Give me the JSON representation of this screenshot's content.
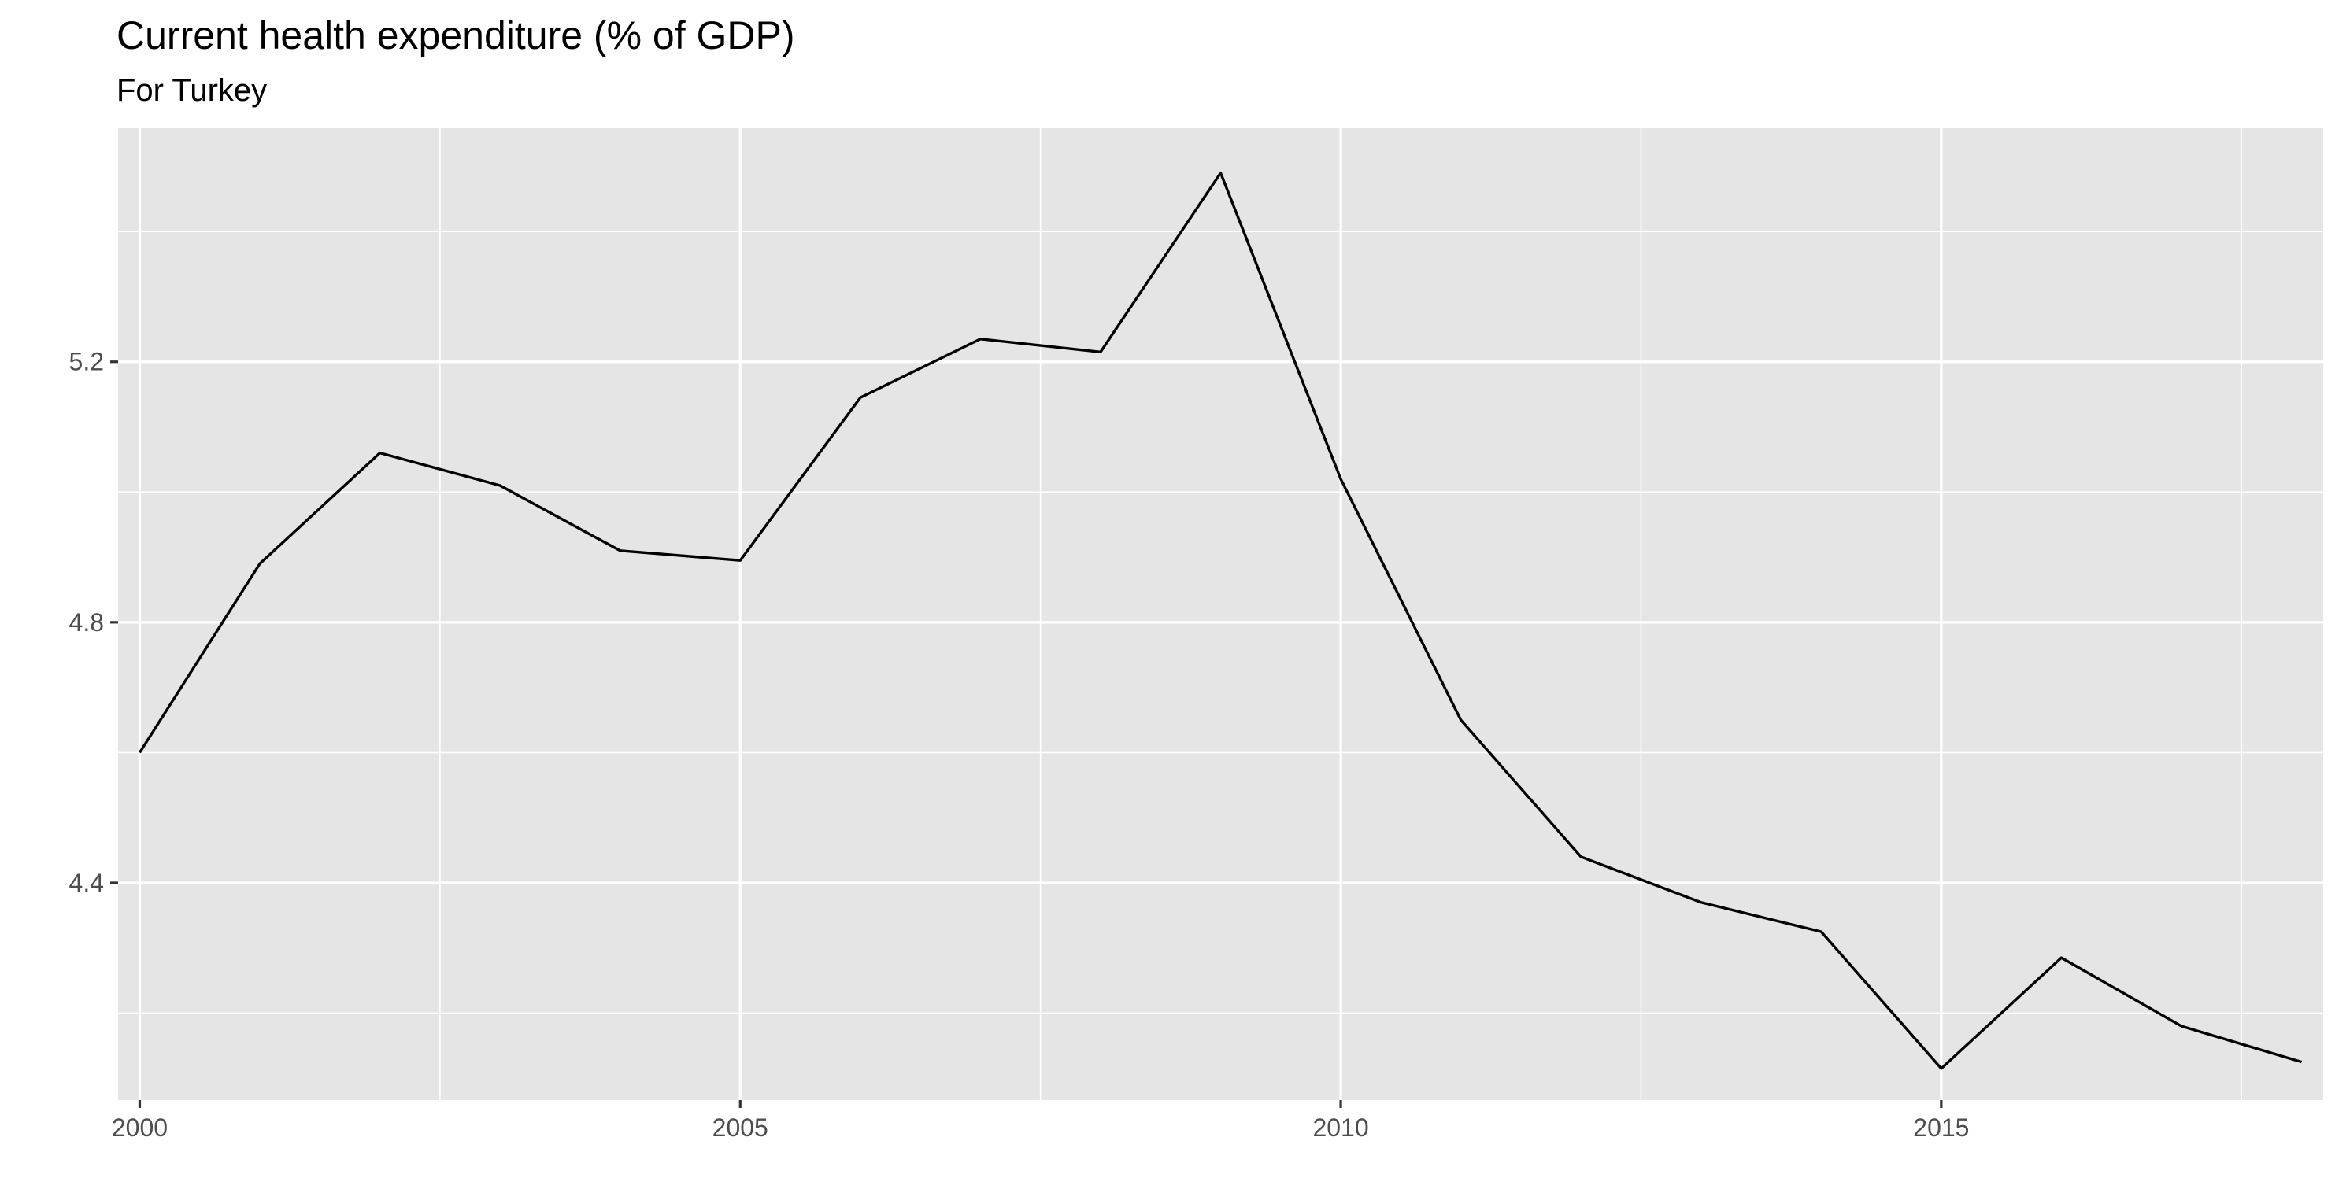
{
  "chart_data": {
    "type": "line",
    "title": "Current health expenditure (% of GDP)",
    "subtitle": "For Turkey",
    "xlabel": "",
    "ylabel": "",
    "x": [
      2000,
      2001,
      2002,
      2003,
      2004,
      2005,
      2006,
      2007,
      2008,
      2009,
      2010,
      2011,
      2012,
      2013,
      2014,
      2015,
      2016,
      2017,
      2018
    ],
    "series": [
      {
        "name": "Turkey",
        "values": [
          4.6,
          4.89,
          5.06,
          5.01,
          4.91,
          4.895,
          5.145,
          5.235,
          5.215,
          5.49,
          5.02,
          4.65,
          4.44,
          4.37,
          4.325,
          4.115,
          4.285,
          4.18,
          4.125
        ],
        "color": "#000000"
      }
    ],
    "xlim": [
      1999.82,
      2018.18
    ],
    "ylim": [
      4.0665,
      5.5585
    ],
    "x_major_ticks": [
      2000,
      2005,
      2010,
      2015
    ],
    "x_minor_ticks": [
      2002.5,
      2007.5,
      2012.5,
      2017.5
    ],
    "x_tick_labels": [
      "2000",
      "2005",
      "2010",
      "2015"
    ],
    "y_major_ticks": [
      4.4,
      4.8,
      5.2
    ],
    "y_minor_ticks": [
      4.2,
      4.6,
      5.0,
      5.4
    ],
    "y_tick_labels": [
      "4.4",
      "4.8",
      "5.2"
    ],
    "grid": true,
    "legend": "none",
    "panel_background": "#e5e5e5",
    "gridline_color": "#ffffff",
    "tick_color": "#333333",
    "tick_label_color": "#4d4d4d",
    "line_color": "#000000"
  }
}
